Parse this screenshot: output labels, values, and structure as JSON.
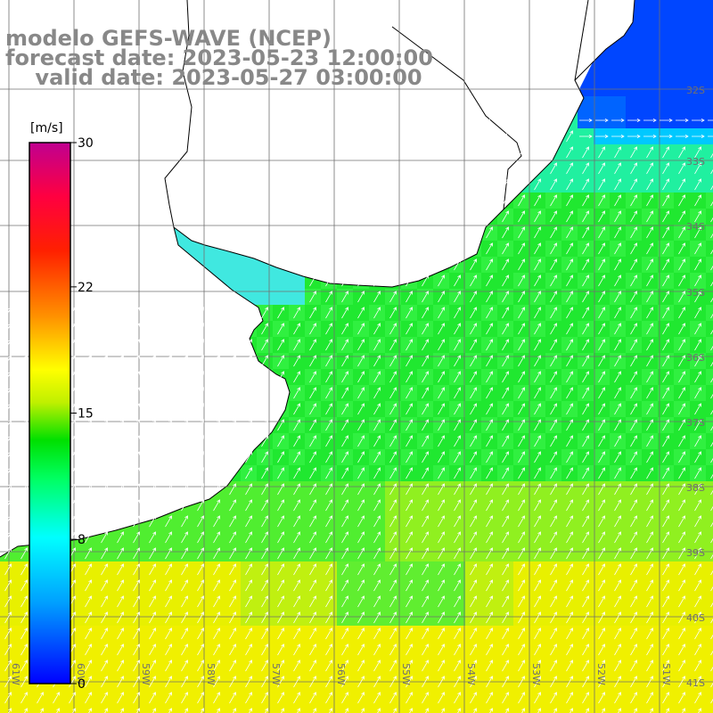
{
  "title": {
    "line1": "modelo GEFS-WAVE (NCEP)",
    "line2": "forecast date: 2023-05-23 12:00:00",
    "line3": "    valid date: 2023-05-27 03:00:00"
  },
  "colorbar": {
    "unit_label": "[m/s]",
    "ticks": [
      {
        "value": 30,
        "label": "30"
      },
      {
        "value": 22,
        "label": "22"
      },
      {
        "value": 15,
        "label": "15"
      },
      {
        "value": 8,
        "label": "8"
      },
      {
        "value": 0,
        "label": "0"
      }
    ],
    "range": [
      0,
      30
    ],
    "colors": [
      "#0000ff",
      "#00a0ff",
      "#00ffff",
      "#00ff60",
      "#00e000",
      "#a0f000",
      "#ffff00",
      "#ff9000",
      "#ff2000",
      "#ff0040",
      "#c00090"
    ]
  },
  "map": {
    "lon_labels": [
      "61W",
      "60W",
      "59W",
      "58W",
      "57W",
      "56W",
      "55W",
      "54W",
      "53W",
      "52W",
      "51W"
    ],
    "lat_labels": [
      "32S",
      "33S",
      "34S",
      "35S",
      "36S",
      "37S",
      "38S",
      "39S",
      "40S",
      "41S"
    ],
    "field": "wind speed with direction arrows",
    "land_color": "#ffffff",
    "grid": true
  }
}
